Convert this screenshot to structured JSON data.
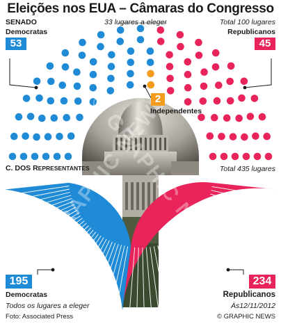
{
  "title": "Eleições nos EUA – Câmaras do Congresso",
  "senate": {
    "label": "SENADO",
    "note_left": "33 lugares a eleger",
    "note_right": "Total 100 lugares",
    "dem_label": "Democratas",
    "rep_label": "Republicanos",
    "ind_label": "Independentes",
    "dem_seats": "53",
    "rep_seats": "45",
    "ind_seats": "2"
  },
  "house": {
    "label_main": "C. DOS R",
    "label_small": "EPRESENTANTES",
    "note_right": "Total 435 lugares",
    "note_left": "Todos os lugares a eleger",
    "dem_label": "Democratas",
    "rep_label": "Republicanos",
    "dem_seats": "195",
    "rep_seats": "234"
  },
  "footer": {
    "source": "Foto: Associated Press",
    "date": "Às12/11/2012",
    "credit": "© GRAPHIC NEWS"
  },
  "watermark": "© GRAPHIC NEWS",
  "colors": {
    "democrat": "#1f8bd6",
    "republican": "#e8245a",
    "independent": "#f39c1e"
  },
  "chart_data": [
    {
      "type": "parliament",
      "series": [
        {
          "name": "Democratas",
          "values": [
            53
          ]
        },
        {
          "name": "Republicanos",
          "values": [
            45
          ]
        },
        {
          "name": "Independentes",
          "values": [
            2
          ]
        }
      ]
    },
    {
      "type": "parliament",
      "series": [
        {
          "name": "Democratas",
          "values": [
            195
          ]
        },
        {
          "name": "Republicanos",
          "values": [
            234
          ]
        }
      ]
    }
  ]
}
